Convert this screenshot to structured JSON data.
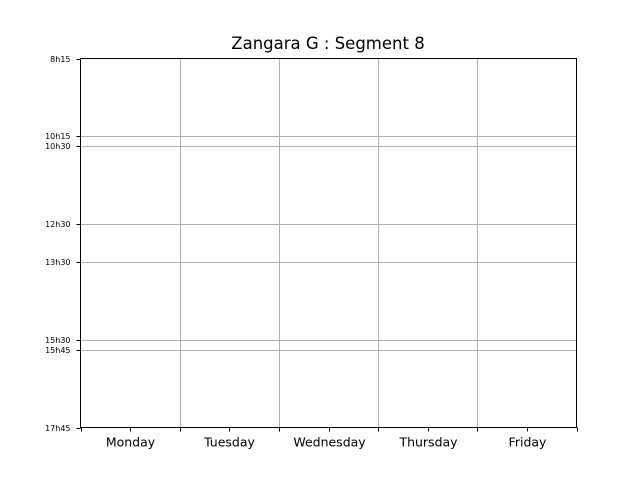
{
  "chart_data": {
    "type": "table",
    "title": "Zangara G : Segment 8",
    "xlabel": "",
    "ylabel": "",
    "categories": [
      "Monday",
      "Tuesday",
      "Wednesday",
      "Thursday",
      "Friday"
    ],
    "y_ticks": [
      {
        "label": "8h15",
        "hours": 8.25
      },
      {
        "label": "10h15",
        "hours": 10.25
      },
      {
        "label": "10h30",
        "hours": 10.5
      },
      {
        "label": "12h30",
        "hours": 12.5
      },
      {
        "label": "13h30",
        "hours": 13.5
      },
      {
        "label": "15h30",
        "hours": 15.5
      },
      {
        "label": "15h45",
        "hours": 15.75
      },
      {
        "label": "17h45",
        "hours": 17.75
      }
    ],
    "ylim": [
      8.25,
      17.75
    ],
    "y_inverted": true,
    "grid": true,
    "series": [],
    "grid_color": "#b0b0b0"
  }
}
